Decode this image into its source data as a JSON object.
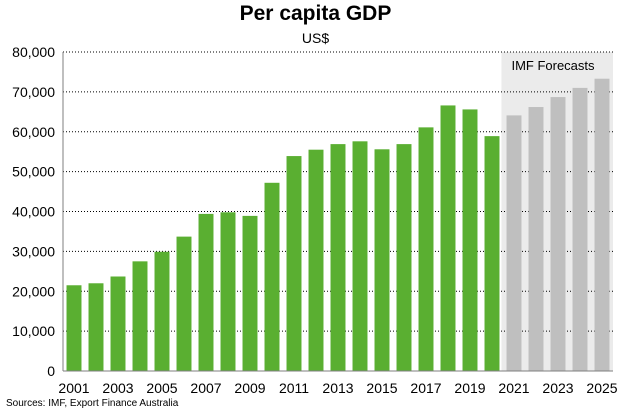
{
  "chart_data": {
    "type": "bar",
    "title": "Per capita GDP",
    "subtitle": "US$",
    "source": "Sources: IMF, Export Finance Australia",
    "forecast_label": "IMF Forecasts",
    "categories": [
      "2001",
      "2002",
      "2003",
      "2004",
      "2005",
      "2006",
      "2007",
      "2008",
      "2009",
      "2010",
      "2011",
      "2012",
      "2013",
      "2014",
      "2015",
      "2016",
      "2017",
      "2018",
      "2019",
      "2020",
      "2021",
      "2022",
      "2023",
      "2024",
      "2025"
    ],
    "values": [
      21500,
      22000,
      23700,
      27500,
      29900,
      33700,
      39400,
      39800,
      38900,
      47200,
      53900,
      55500,
      56900,
      57600,
      55600,
      56900,
      61100,
      66600,
      65600,
      58900,
      64100,
      66200,
      68700,
      71000,
      73300
    ],
    "forecast_start": "2021",
    "x_tick_labels": [
      "2001",
      "2003",
      "2005",
      "2007",
      "2009",
      "2011",
      "2013",
      "2015",
      "2017",
      "2019",
      "2021",
      "2023",
      "2025"
    ],
    "y_tick_labels": [
      "0",
      "10,000",
      "20,000",
      "30,000",
      "40,000",
      "50,000",
      "60,000",
      "70,000",
      "80,000"
    ],
    "ylim": [
      0,
      80000
    ],
    "grid": true,
    "colors": {
      "actual": "#5aaf31",
      "forecast": "#bfbfbf",
      "forecast_band": "#ebebeb",
      "gridline": "#000000",
      "axis": "#7f7f7f"
    }
  }
}
